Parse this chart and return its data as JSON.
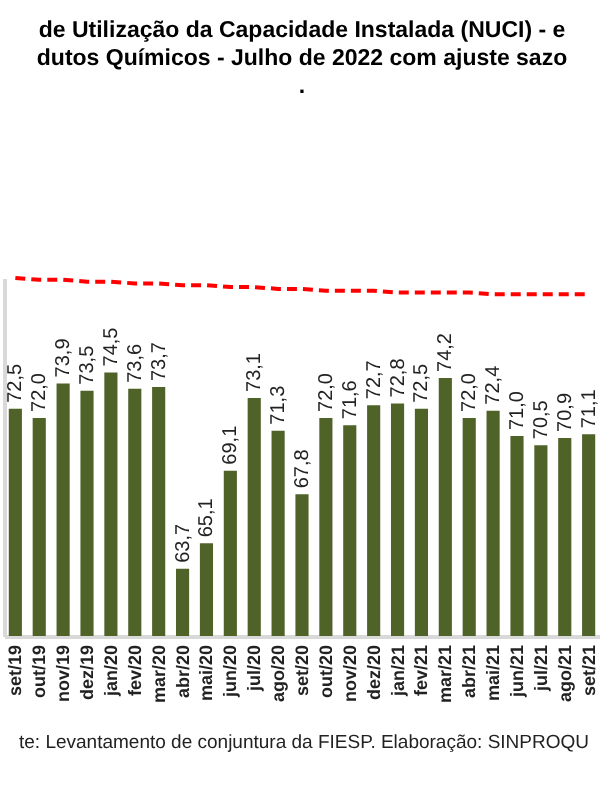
{
  "chart_data": {
    "type": "bar",
    "title": [
      "de Utilização da Capacidade Instalada (NUCI) - e",
      "dutos Químicos - Julho de 2022 com ajuste sazo",
      "."
    ],
    "categories": [
      "set/19",
      "out/19",
      "nov/19",
      "dez/19",
      "jan/20",
      "fev/20",
      "mar/20",
      "abr/20",
      "mai/20",
      "jun/20",
      "jul/20",
      "ago/20",
      "set/20",
      "out/20",
      "nov/20",
      "dez/20",
      "jan/21",
      "fev/21",
      "mar/21",
      "abr/21",
      "mai/21",
      "jun/21",
      "jul/21",
      "ago/21",
      "set/21"
    ],
    "series": [
      {
        "color": "#4f6228",
        "values": [
          72.5,
          72.0,
          73.9,
          73.5,
          74.5,
          73.6,
          73.7,
          63.7,
          65.1,
          69.1,
          73.1,
          71.3,
          67.8,
          72.0,
          71.6,
          72.7,
          72.8,
          72.5,
          74.2,
          72.0,
          72.4,
          71.0,
          70.5,
          70.9,
          71.1
        ],
        "value_labels": [
          "72,5",
          "72,0",
          "73,9",
          "73,5",
          "74,5",
          "73,6",
          "73,7",
          "63,7",
          "65,1",
          "69,1",
          "73,1",
          "71,3",
          "67,8",
          "72,0",
          "71,6",
          "72,7",
          "72,8",
          "72,5",
          "74,2",
          "72,0",
          "72,4",
          "71,0",
          "70,5",
          "70,9",
          "71,1"
        ]
      },
      {
        "type": "line",
        "color": "#ff0000",
        "line_style": "dashed",
        "values": [
          79.7,
          79.6,
          79.6,
          79.5,
          79.5,
          79.4,
          79.4,
          79.3,
          79.3,
          79.2,
          79.2,
          79.1,
          79.1,
          79.0,
          79.0,
          79.0,
          78.9,
          78.9,
          78.9,
          78.9,
          78.8,
          78.8,
          78.8,
          78.8,
          78.8
        ]
      }
    ],
    "ylim": [
      60,
      79.7
    ],
    "tick_labels": "x",
    "marker": "none",
    "annotations": [
      "te: Levantamento de conjuntura da FIESP. Elaboração: SINPROQU"
    ]
  }
}
